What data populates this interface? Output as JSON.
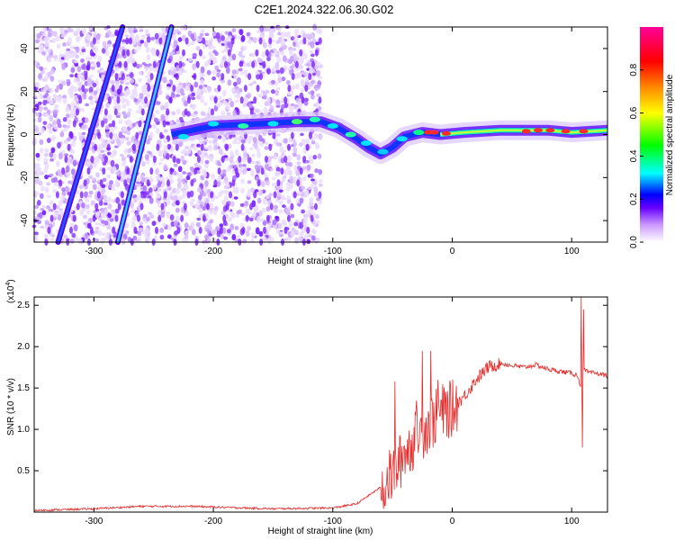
{
  "title": "C2E1.2024.322.06.30.G02",
  "chart_data": [
    {
      "type": "heatmap",
      "xlabel": "Height of straight line (km)",
      "ylabel": "Frequency (Hz)",
      "xlim": [
        -350,
        130
      ],
      "ylim": [
        -50,
        50
      ],
      "x_ticks": [
        -300,
        -200,
        -100,
        0,
        100
      ],
      "x_tick_labels": [
        "-300",
        "-200",
        "-100",
        "0",
        "100"
      ],
      "y_ticks": [
        -40,
        -20,
        0,
        20,
        40
      ],
      "y_tick_labels": [
        "-40",
        "-20",
        "0",
        "20",
        "40"
      ],
      "colorbar": {
        "label": "Normalized spectral amplitude",
        "range": [
          0,
          1
        ],
        "ticks": [
          0.0,
          0.2,
          0.4,
          0.6,
          0.8
        ],
        "tick_labels": [
          "0.0",
          "0.2",
          "0.4",
          "0.6",
          "0.8"
        ],
        "colors": [
          "#ffffff",
          "#cc99ff",
          "#6600ff",
          "#0000ff",
          "#00ffff",
          "#00ff00",
          "#ffff00",
          "#ff8800",
          "#ff0000",
          "#ff0099"
        ]
      },
      "features": {
        "noise_region_x": [
          -350,
          -110
        ],
        "streak_line_1": [
          [
            -330,
            -50
          ],
          [
            -276,
            50
          ]
        ],
        "streak_line_2": [
          [
            -280,
            -50
          ],
          [
            -235,
            50
          ]
        ],
        "main_track": [
          [
            -235,
            0
          ],
          [
            -200,
            4
          ],
          [
            -160,
            5
          ],
          [
            -130,
            6
          ],
          [
            -110,
            6
          ],
          [
            -95,
            3
          ],
          [
            -80,
            -2
          ],
          [
            -70,
            -6
          ],
          [
            -60,
            -9
          ],
          [
            -50,
            -6
          ],
          [
            -40,
            -1
          ],
          [
            -25,
            1
          ],
          [
            -10,
            0
          ],
          [
            10,
            1
          ],
          [
            40,
            2
          ],
          [
            80,
            2
          ],
          [
            100,
            1
          ],
          [
            130,
            2
          ]
        ]
      }
    },
    {
      "type": "line",
      "xlabel": "Height of straight line (km)",
      "ylabel": "SNR (10 * v/v)",
      "y_multiplier": "(x10",
      "y_multiplier_exp": "4",
      "y_multiplier_close": ")",
      "xlim": [
        -350,
        130
      ],
      "ylim": [
        0,
        2.6
      ],
      "x_ticks": [
        -300,
        -200,
        -100,
        0,
        100
      ],
      "x_tick_labels": [
        "-300",
        "-200",
        "-100",
        "0",
        "100"
      ],
      "y_ticks": [
        0.5,
        1.0,
        1.5,
        2.0,
        2.5
      ],
      "y_tick_labels": [
        "0.5",
        "1.0",
        "1.5",
        "2.0",
        "2.5"
      ],
      "series_color": "#e82a2a",
      "x": [
        -350,
        -300,
        -260,
        -220,
        -150,
        -100,
        -80,
        -60,
        -50,
        -40,
        -30,
        -20,
        -10,
        0,
        10,
        20,
        30,
        40,
        50,
        60,
        70,
        80,
        90,
        100,
        105,
        108,
        110,
        115,
        120,
        130
      ],
      "values": [
        0.02,
        0.04,
        0.07,
        0.07,
        0.04,
        0.05,
        0.1,
        0.3,
        0.45,
        0.7,
        0.9,
        1.05,
        1.2,
        1.25,
        1.4,
        1.6,
        1.75,
        1.8,
        1.77,
        1.75,
        1.78,
        1.73,
        1.7,
        1.68,
        1.65,
        1.5,
        1.72,
        1.68,
        1.68,
        1.65
      ],
      "spikes": [
        [
          -48,
          1.58
        ],
        [
          -40,
          0.8
        ],
        [
          -30,
          1.35
        ],
        [
          -25,
          1.95
        ],
        [
          -18,
          1.95
        ],
        [
          -12,
          1.6
        ],
        [
          -5,
          1.35
        ],
        [
          0,
          1.2
        ],
        [
          108,
          2.6
        ],
        [
          110,
          2.45
        ],
        [
          109,
          0.78
        ]
      ]
    }
  ]
}
